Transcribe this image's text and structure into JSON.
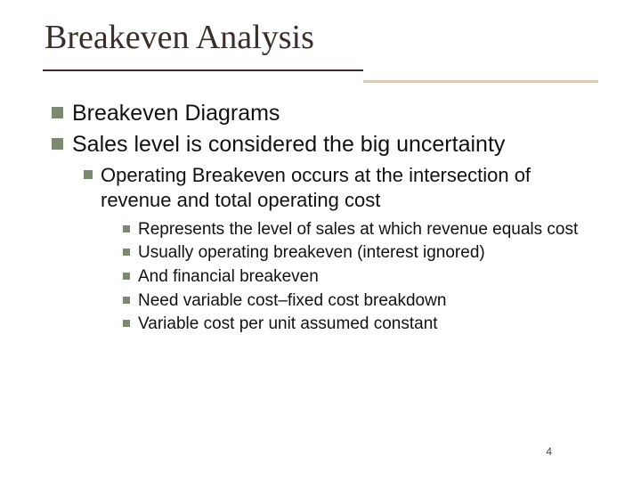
{
  "slide": {
    "title": "Breakeven Analysis",
    "page_number": "4",
    "colors": {
      "title_color": "#3b2d2a",
      "bullet_color": "#7a8a6f",
      "text_color": "#111111",
      "underline_color": "#3b2d2a",
      "stub_color": "#d9cdb8"
    },
    "lvl1": [
      "Breakeven Diagrams",
      "Sales level is considered the big uncertainty"
    ],
    "lvl2": [
      "Operating Breakeven occurs at the intersection of revenue and total operating cost"
    ],
    "lvl3": [
      "Represents the level of sales at which revenue equals cost",
      "Usually operating breakeven (interest ignored)",
      "And financial breakeven",
      "Need variable cost–fixed cost breakdown",
      "Variable cost per unit assumed constant"
    ]
  }
}
